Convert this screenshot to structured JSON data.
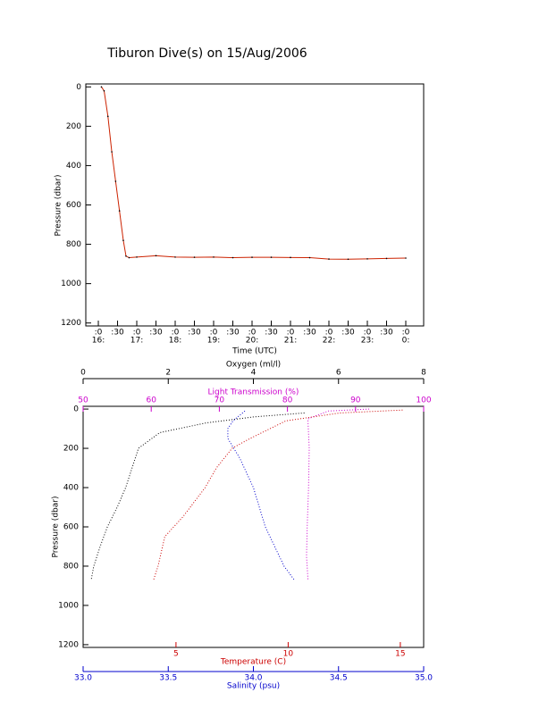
{
  "chart_data": [
    {
      "type": "line",
      "title": "Tiburon Dive(s) on 15/Aug/2006",
      "x_label": "Time (UTC)",
      "y_label": "Pressure (dbar)",
      "xlim": [
        15.674,
        24.465
      ],
      "ylim": [
        -15,
        1215
      ],
      "y_inverted": true,
      "xticks": [
        {
          "value": 16,
          "label": ":0"
        },
        {
          "value": 16.5,
          "label": ":30"
        },
        {
          "value": 17,
          "label": ":0"
        },
        {
          "value": 17.5,
          "label": ":30"
        },
        {
          "value": 18,
          "label": ":0"
        },
        {
          "value": 18.5,
          "label": ":30"
        },
        {
          "value": 19,
          "label": ":0"
        },
        {
          "value": 19.5,
          "label": ":30"
        },
        {
          "value": 20,
          "label": ":0"
        },
        {
          "value": 20.5,
          "label": ":30"
        },
        {
          "value": 21,
          "label": ":0"
        },
        {
          "value": 21.5,
          "label": ":30"
        },
        {
          "value": 22,
          "label": ":0"
        },
        {
          "value": 22.5,
          "label": ":30"
        },
        {
          "value": 23,
          "label": ":0"
        },
        {
          "value": 23.5,
          "label": ":30"
        },
        {
          "value": 24,
          "label": ":0"
        }
      ],
      "xticks_hour": [
        {
          "value": 16,
          "label": "16:"
        },
        {
          "value": 17,
          "label": "17:"
        },
        {
          "value": 18,
          "label": "18:"
        },
        {
          "value": 19,
          "label": "19:"
        },
        {
          "value": 20,
          "label": "20:"
        },
        {
          "value": 21,
          "label": "21:"
        },
        {
          "value": 22,
          "label": "22:"
        },
        {
          "value": 23,
          "label": "23:"
        },
        {
          "value": 24,
          "label": "0:"
        }
      ],
      "yticks": [
        0,
        200,
        400,
        600,
        800,
        1000,
        1200
      ],
      "series": [
        {
          "color": "#cc2200",
          "marker_color": "#000000",
          "x": [
            16.08,
            16.15,
            16.25,
            16.35,
            16.45,
            16.55,
            16.65,
            16.72,
            16.8,
            17.0,
            17.5,
            18.0,
            18.5,
            19.0,
            19.5,
            20.0,
            20.5,
            21.0,
            21.5,
            22.0,
            22.5,
            23.0,
            23.5,
            24.0
          ],
          "values": [
            0,
            20,
            150,
            330,
            480,
            630,
            780,
            860,
            868,
            865,
            858,
            865,
            866,
            865,
            868,
            866,
            866,
            867,
            868,
            875,
            876,
            874,
            872,
            870
          ]
        }
      ]
    },
    {
      "type": "profile",
      "y_label": "Pressure (dbar)",
      "ylim": [
        -14,
        1214
      ],
      "y_inverted": true,
      "yticks": [
        0,
        200,
        400,
        600,
        800,
        1000,
        1200
      ],
      "axes": [
        {
          "label": "Oxygen (ml/l)",
          "color": "#000000",
          "lim": [
            0,
            8
          ],
          "ticks": [
            0,
            2,
            4,
            6,
            8
          ]
        },
        {
          "label": "Light Transmission (%)",
          "color": "#cc00cc",
          "lim": [
            50,
            100
          ],
          "ticks": [
            50,
            60,
            70,
            80,
            90,
            100
          ]
        },
        {
          "label": "Temperature (C)",
          "color": "#cc0000",
          "lim": [
            0.86,
            16.04
          ],
          "ticks": [
            5,
            10,
            15
          ]
        },
        {
          "label": "Salinity (psu)",
          "color": "#0000cc",
          "lim": [
            33,
            35
          ],
          "ticks": [
            {
              "value": 33,
              "label": "33.0"
            },
            33.5,
            {
              "value": 34,
              "label": "34.0"
            },
            34.5,
            {
              "value": 35,
              "label": "35.0"
            }
          ]
        }
      ],
      "series": [
        {
          "axis": 0,
          "color": "#000000",
          "x": [
            5.2,
            4.0,
            2.9,
            1.8,
            1.3,
            1.15,
            1.0,
            0.8,
            0.57,
            0.4,
            0.25,
            0.19
          ],
          "y": [
            20,
            40,
            70,
            120,
            200,
            300,
            400,
            500,
            600,
            700,
            800,
            870
          ]
        },
        {
          "axis": 1,
          "color": "#cc00cc",
          "x": [
            92,
            86,
            83,
            83.2,
            83.1,
            82.9,
            82.8,
            83,
            83
          ],
          "y": [
            0,
            10,
            50,
            200,
            400,
            600,
            750,
            860,
            870
          ]
        },
        {
          "axis": 2,
          "color": "#cc0000",
          "x": [
            15.1,
            12.3,
            9.9,
            8.3,
            7.5,
            6.8,
            6.3,
            5.3,
            4.5,
            4.2,
            4.0
          ],
          "y": [
            5,
            20,
            60,
            150,
            200,
            300,
            400,
            550,
            650,
            800,
            870
          ]
        },
        {
          "axis": 3,
          "color": "#0000cc",
          "x": [
            33.95,
            33.88,
            33.85,
            33.85,
            33.92,
            34.0,
            34.07,
            34.18,
            34.24
          ],
          "y": [
            10,
            60,
            100,
            150,
            250,
            400,
            600,
            800,
            870
          ]
        }
      ]
    }
  ]
}
